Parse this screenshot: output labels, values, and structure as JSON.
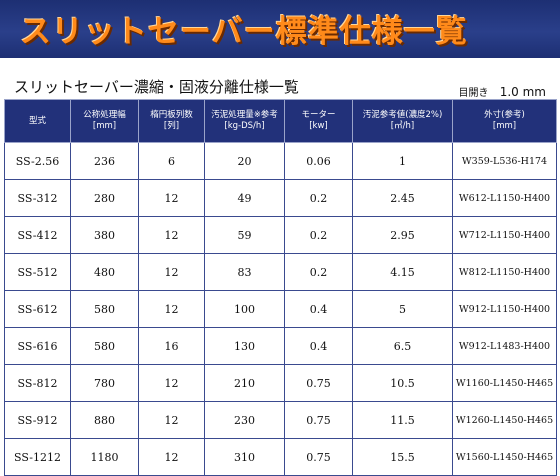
{
  "banner": {
    "title": "スリットセーバー標準仕様一覧"
  },
  "subtitle": "スリットセーバー濃縮・固液分離仕様一覧",
  "opening": {
    "label": "目開き",
    "value": "1.0 mm"
  },
  "table": {
    "headers": [
      {
        "line1": "型式",
        "line2": ""
      },
      {
        "line1": "公称処理幅",
        "line2": "[mm]"
      },
      {
        "line1": "楕円板列数",
        "line2": "[列]"
      },
      {
        "line1": "汚泥処理量※参考",
        "line2": "[kg-DS/h]"
      },
      {
        "line1": "モーター",
        "line2": "[kw]"
      },
      {
        "line1": "汚泥参考値(濃度2%)",
        "line2": "[㎥/h]"
      },
      {
        "line1": "外寸(参考)",
        "line2": "[mm]"
      }
    ],
    "rows": [
      [
        "SS-2.56",
        "236",
        "6",
        "20",
        "0.06",
        "1",
        "W359-L536-H174"
      ],
      [
        "SS-312",
        "280",
        "12",
        "49",
        "0.2",
        "2.45",
        "W612-L1150-H400"
      ],
      [
        "SS-412",
        "380",
        "12",
        "59",
        "0.2",
        "2.95",
        "W712-L1150-H400"
      ],
      [
        "SS-512",
        "480",
        "12",
        "83",
        "0.2",
        "4.15",
        "W812-L1150-H400"
      ],
      [
        "SS-612",
        "580",
        "12",
        "100",
        "0.4",
        "5",
        "W912-L1150-H400"
      ],
      [
        "SS-616",
        "580",
        "16",
        "130",
        "0.4",
        "6.5",
        "W912-L1483-H400"
      ],
      [
        "SS-812",
        "780",
        "12",
        "210",
        "0.75",
        "10.5",
        "W1160-L1450-H465"
      ],
      [
        "SS-912",
        "880",
        "12",
        "230",
        "0.75",
        "11.5",
        "W1260-L1450-H465"
      ],
      [
        "SS-1212",
        "1180",
        "12",
        "310",
        "0.75",
        "15.5",
        "W1560-L1450-H465"
      ]
    ]
  }
}
